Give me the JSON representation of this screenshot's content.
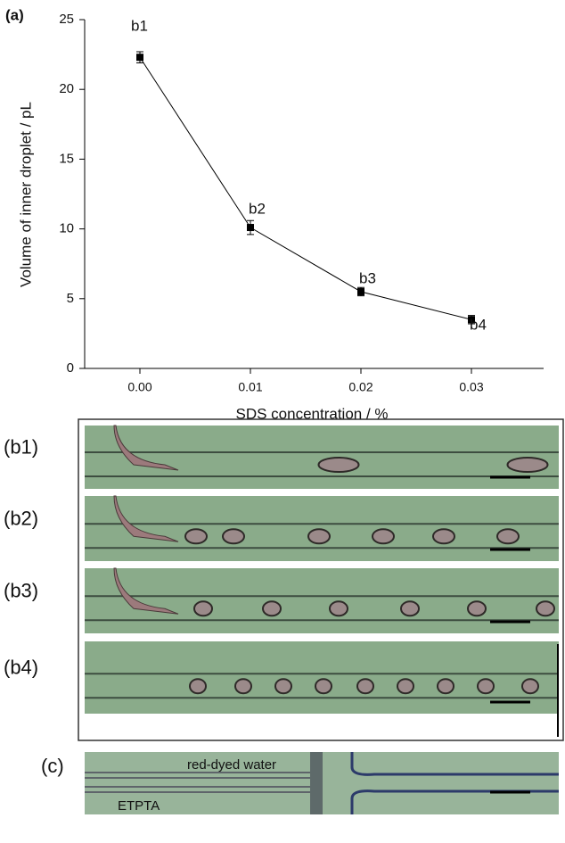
{
  "panel_label": "(a)",
  "chart_data": {
    "type": "line",
    "x_label": "SDS concentration / %",
    "y_label": "Volume of inner droplet / pL",
    "x": [
      0,
      0.01,
      0.02,
      0.03
    ],
    "values": [
      22.3,
      10.1,
      5.5,
      3.5
    ],
    "errors": [
      0.4,
      0.5,
      0.3,
      0.3
    ],
    "annotations": [
      "b1",
      "b2",
      "b3",
      "b4"
    ],
    "color": "#000000",
    "xlim": [
      -0.005,
      0.035
    ],
    "xticks": [
      {
        "value": 0,
        "label": "0.00"
      },
      {
        "value": 0.01,
        "label": "0.01"
      },
      {
        "value": 0.02,
        "label": "0.02"
      },
      {
        "value": 0.03,
        "label": "0.03"
      }
    ],
    "ylim": [
      0,
      25
    ],
    "yticks": [
      0,
      5,
      10,
      15,
      20,
      25
    ]
  },
  "image_panels": [
    "(b1)",
    "(b2)",
    "(b3)",
    "(b4)"
  ],
  "panel_c": {
    "label": "(c)",
    "top_text": "red-dyed water",
    "bottom_text": "ETPTA"
  }
}
